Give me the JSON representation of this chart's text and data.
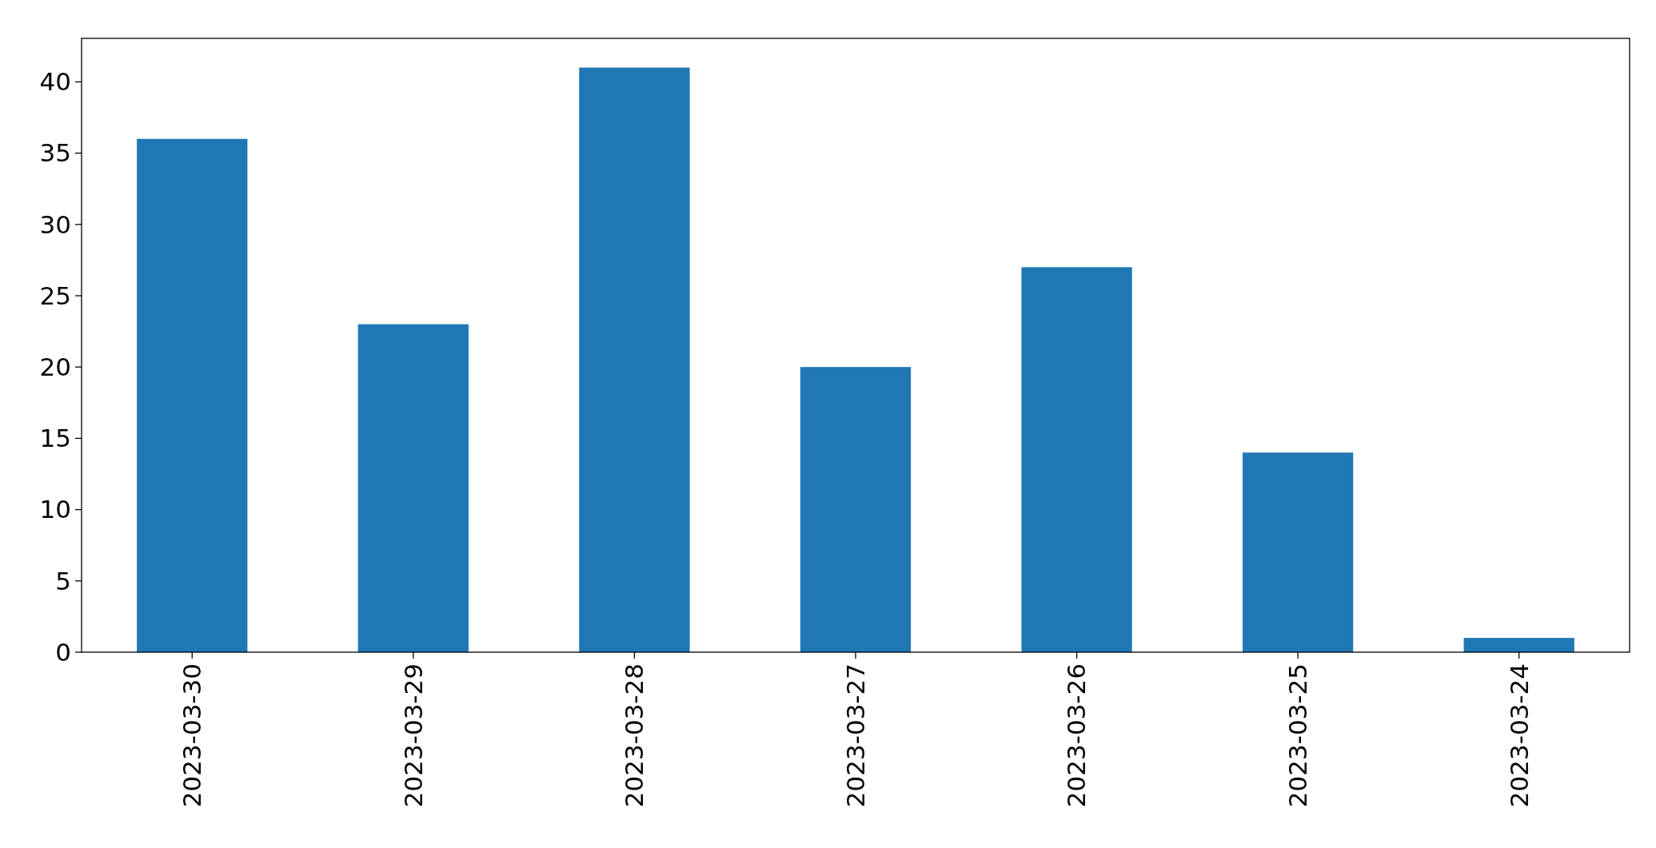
{
  "chart_data": {
    "type": "bar",
    "categories": [
      "2023-03-30",
      "2023-03-29",
      "2023-03-28",
      "2023-03-27",
      "2023-03-26",
      "2023-03-25",
      "2023-03-24"
    ],
    "values": [
      36,
      23,
      41,
      20,
      27,
      14,
      1
    ],
    "color": "#1f77b4",
    "ylim": [
      0,
      43.05
    ],
    "yticks": [
      0,
      5,
      10,
      15,
      20,
      25,
      30,
      35,
      40
    ],
    "grid": false
  }
}
